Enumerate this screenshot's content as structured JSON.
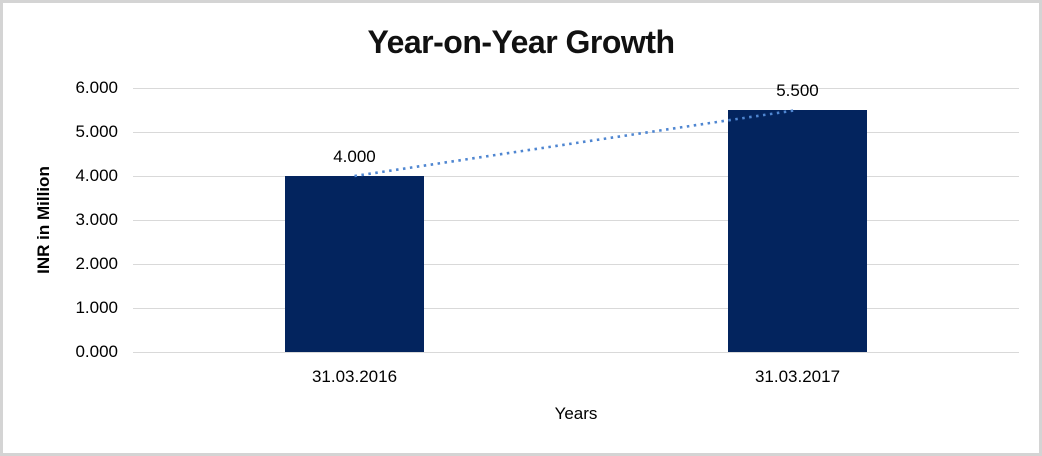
{
  "frame": {
    "border_color": "#d4d4d4",
    "background_color": "#ffffff"
  },
  "chart_data": {
    "type": "bar",
    "title": "Year-on-Year Growth",
    "xlabel": "Years",
    "ylabel": "INR in Million",
    "categories": [
      "31.03.2016",
      "31.03.2017"
    ],
    "series": [
      {
        "name": "INR in Million",
        "type": "bar",
        "values": [
          4.0,
          5.5
        ],
        "value_labels": [
          "4.000",
          "5.500"
        ],
        "color": "#03245e"
      },
      {
        "name": "trendline",
        "type": "dotted-line",
        "values": [
          4.0,
          5.5
        ],
        "color": "#4f86d1"
      }
    ],
    "ylim": [
      0,
      6
    ],
    "ytick_step": 1,
    "ytick_labels": [
      "0.000",
      "1.000",
      "2.000",
      "3.000",
      "4.000",
      "5.000",
      "6.000"
    ],
    "grid": "horizontal",
    "gridline_color": "#d9d9d9",
    "legend_position": "none"
  }
}
